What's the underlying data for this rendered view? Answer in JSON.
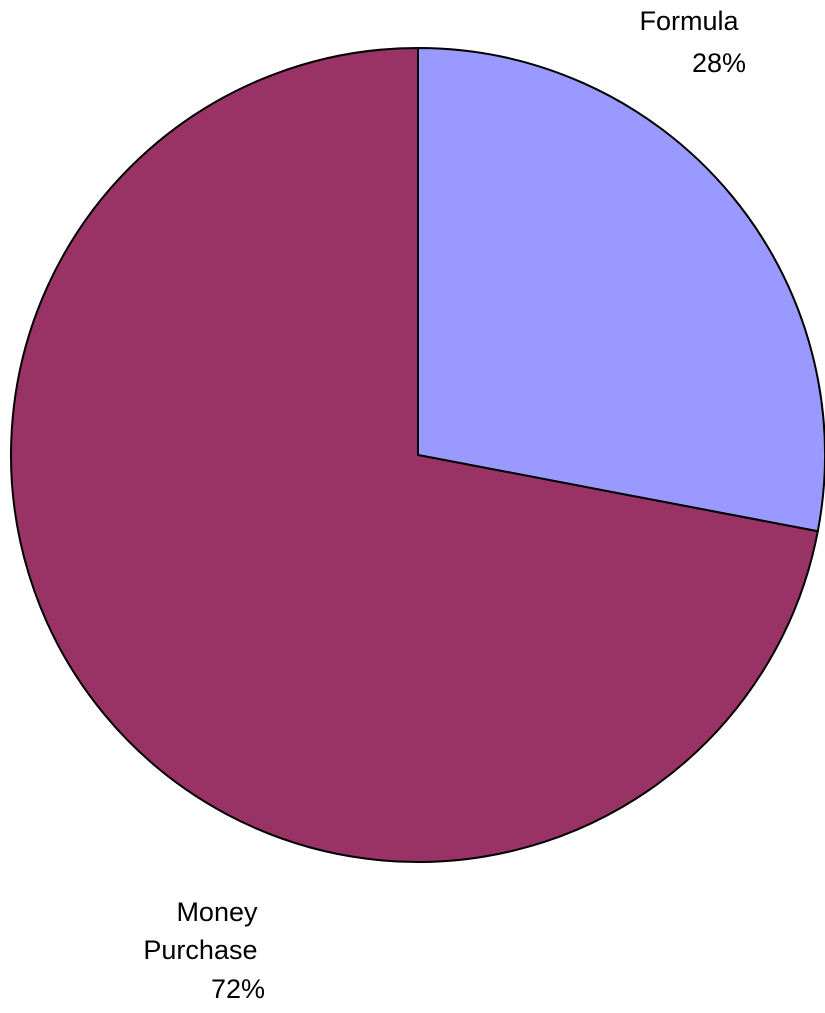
{
  "chart_data": {
    "type": "pie",
    "slices": [
      {
        "name": "Formula",
        "display_label": "Formula",
        "value": 28,
        "value_text": "28%",
        "color": "#9999FF"
      },
      {
        "name": "Money Purchase",
        "display_label": [
          "Money",
          "Purchase"
        ],
        "value": 72,
        "value_text": "72%",
        "color": "#993366"
      }
    ],
    "start_angle": "12 o'clock",
    "direction": "clockwise",
    "outline_color": "#000000",
    "legend": "none"
  }
}
